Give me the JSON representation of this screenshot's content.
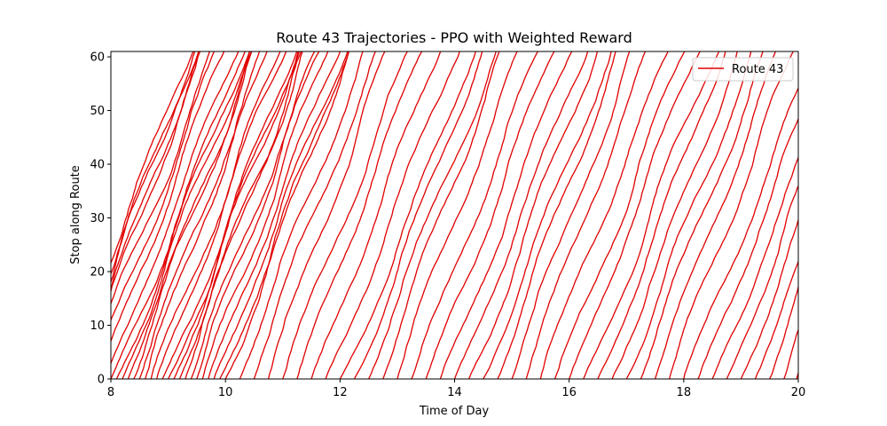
{
  "chart_data": {
    "type": "line",
    "title": "Route 43 Trajectories - PPO with Weighted Reward",
    "xlabel": "Time of Day",
    "ylabel": "Stop along Route",
    "xlim": [
      8,
      20
    ],
    "ylim": [
      0,
      61
    ],
    "xticks": [
      8,
      10,
      12,
      14,
      16,
      18,
      20
    ],
    "yticks": [
      0,
      10,
      20,
      30,
      40,
      50,
      60
    ],
    "grid": false,
    "legend": {
      "placement": "top-right",
      "entries": [
        "Route 43"
      ]
    },
    "series": [
      {
        "name": "Route 43",
        "color": "#e00000",
        "departures": [
          7.1,
          7.2,
          7.3,
          7.4,
          7.5,
          7.6,
          7.7,
          7.8,
          7.9,
          8.0,
          8.1,
          8.2,
          8.3,
          8.4,
          8.5,
          8.6,
          8.7,
          8.8,
          8.9,
          9.0,
          9.1,
          9.2,
          9.3,
          9.4,
          9.5,
          9.6,
          9.7,
          9.8,
          9.9,
          10.0,
          10.25,
          10.5,
          10.75,
          11.0,
          11.25,
          11.5,
          11.75,
          12.0,
          12.25,
          12.5,
          12.75,
          13.0,
          13.25,
          13.5,
          13.75,
          14.0,
          14.25,
          14.5,
          14.75,
          15.0,
          15.25,
          15.5,
          15.75,
          16.0,
          16.25,
          16.5,
          16.75,
          17.0,
          17.25,
          17.5,
          17.75,
          18.0,
          18.25,
          18.5,
          18.75,
          19.0,
          19.25,
          19.5,
          19.75,
          19.97
        ],
        "trip_duration_hours": 2.2,
        "stops": 61
      }
    ]
  }
}
